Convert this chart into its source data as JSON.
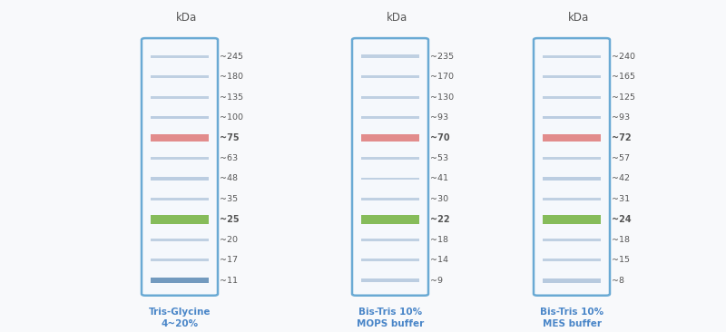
{
  "background": "#f8f9fb",
  "title_color": "#4a86c8",
  "text_color": "#555555",
  "lane_box_edge": "#6aaad4",
  "lane_box_face": "#f5f8fc",
  "color_map": {
    "blue": "#a8bfd8",
    "blue_dark": "#5b8ab5",
    "red": "#e08080",
    "green": "#7ab648"
  },
  "lanes": [
    {
      "label": "Tris-Glycine\n4~20%",
      "kda_label": "kDa",
      "bands": [
        {
          "kda": "~245",
          "color": "blue",
          "lw": 1.0,
          "bold": false,
          "alpha": 0.7
        },
        {
          "kda": "~180",
          "color": "blue",
          "lw": 1.0,
          "bold": false,
          "alpha": 0.7
        },
        {
          "kda": "~135",
          "color": "blue",
          "lw": 1.0,
          "bold": false,
          "alpha": 0.7
        },
        {
          "kda": "~100",
          "color": "blue",
          "lw": 1.2,
          "bold": false,
          "alpha": 0.75
        },
        {
          "kda": "~75",
          "color": "red",
          "lw": 2.8,
          "bold": true,
          "alpha": 0.9
        },
        {
          "kda": "~63",
          "color": "blue",
          "lw": 1.0,
          "bold": false,
          "alpha": 0.7
        },
        {
          "kda": "~48",
          "color": "blue",
          "lw": 1.2,
          "bold": false,
          "alpha": 0.75
        },
        {
          "kda": "~35",
          "color": "blue",
          "lw": 1.0,
          "bold": false,
          "alpha": 0.7
        },
        {
          "kda": "~25",
          "color": "green",
          "lw": 3.2,
          "bold": true,
          "alpha": 0.9
        },
        {
          "kda": "~20",
          "color": "blue",
          "lw": 1.0,
          "bold": false,
          "alpha": 0.7
        },
        {
          "kda": "~17",
          "color": "blue",
          "lw": 1.0,
          "bold": false,
          "alpha": 0.7
        },
        {
          "kda": "~11",
          "color": "blue_dark",
          "lw": 2.0,
          "bold": false,
          "alpha": 0.85
        }
      ]
    },
    {
      "label": "Bis-Tris 10%\nMOPS buffer",
      "kda_label": "kDa",
      "bands": [
        {
          "kda": "~235",
          "color": "blue",
          "lw": 1.2,
          "bold": false,
          "alpha": 0.7
        },
        {
          "kda": "~170",
          "color": "blue",
          "lw": 1.0,
          "bold": false,
          "alpha": 0.7
        },
        {
          "kda": "~130",
          "color": "blue",
          "lw": 1.0,
          "bold": false,
          "alpha": 0.7
        },
        {
          "kda": "~93",
          "color": "blue",
          "lw": 1.0,
          "bold": false,
          "alpha": 0.7
        },
        {
          "kda": "~70",
          "color": "red",
          "lw": 2.8,
          "bold": true,
          "alpha": 0.9
        },
        {
          "kda": "~53",
          "color": "blue",
          "lw": 1.0,
          "bold": false,
          "alpha": 0.7
        },
        {
          "kda": "~41",
          "color": "blue",
          "lw": 1.0,
          "bold": false,
          "alpha": 0.7
        },
        {
          "kda": "~30",
          "color": "blue",
          "lw": 1.0,
          "bold": false,
          "alpha": 0.7
        },
        {
          "kda": "~22",
          "color": "green",
          "lw": 3.2,
          "bold": true,
          "alpha": 0.9
        },
        {
          "kda": "~18",
          "color": "blue",
          "lw": 1.0,
          "bold": false,
          "alpha": 0.7
        },
        {
          "kda": "~14",
          "color": "blue",
          "lw": 1.0,
          "bold": false,
          "alpha": 0.7
        },
        {
          "kda": "~9",
          "color": "blue",
          "lw": 1.5,
          "bold": false,
          "alpha": 0.75
        }
      ]
    },
    {
      "label": "Bis-Tris 10%\nMES buffer",
      "kda_label": "kDa",
      "bands": [
        {
          "kda": "~240",
          "color": "blue",
          "lw": 1.0,
          "bold": false,
          "alpha": 0.7
        },
        {
          "kda": "~165",
          "color": "blue",
          "lw": 1.0,
          "bold": false,
          "alpha": 0.7
        },
        {
          "kda": "~125",
          "color": "blue",
          "lw": 1.0,
          "bold": false,
          "alpha": 0.7
        },
        {
          "kda": "~93",
          "color": "blue",
          "lw": 1.2,
          "bold": false,
          "alpha": 0.75
        },
        {
          "kda": "~72",
          "color": "red",
          "lw": 2.8,
          "bold": true,
          "alpha": 0.9
        },
        {
          "kda": "~57",
          "color": "blue",
          "lw": 1.0,
          "bold": false,
          "alpha": 0.7
        },
        {
          "kda": "~42",
          "color": "blue",
          "lw": 1.2,
          "bold": false,
          "alpha": 0.75
        },
        {
          "kda": "~31",
          "color": "blue",
          "lw": 1.0,
          "bold": false,
          "alpha": 0.7
        },
        {
          "kda": "~24",
          "color": "green",
          "lw": 3.2,
          "bold": true,
          "alpha": 0.9
        },
        {
          "kda": "~18",
          "color": "blue",
          "lw": 1.0,
          "bold": false,
          "alpha": 0.7
        },
        {
          "kda": "~15",
          "color": "blue",
          "lw": 1.0,
          "bold": false,
          "alpha": 0.7
        },
        {
          "kda": "~8",
          "color": "blue",
          "lw": 1.8,
          "bold": false,
          "alpha": 0.8
        }
      ]
    }
  ],
  "fig_width": 8.0,
  "fig_height": 3.66,
  "dpi": 100
}
